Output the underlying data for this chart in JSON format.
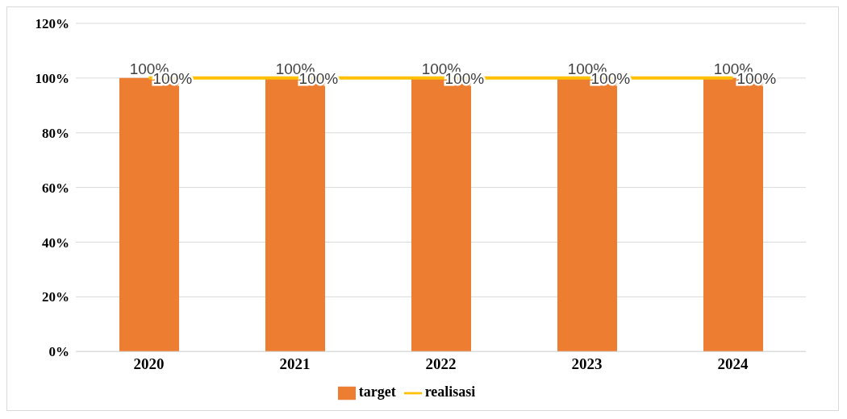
{
  "chart_data": {
    "type": "bar",
    "categories": [
      "2020",
      "2021",
      "2022",
      "2023",
      "2024"
    ],
    "series": [
      {
        "name": "target",
        "color": "#ed7d31",
        "values": [
          100,
          100,
          100,
          100,
          100
        ],
        "value_labels": [
          "100%",
          "100%",
          "100%",
          "100%",
          "100%"
        ]
      },
      {
        "name": "realisasi",
        "type": "line",
        "color": "#ffc000",
        "values": [
          100,
          100,
          100,
          100,
          100
        ],
        "value_labels": [
          "100%",
          "100%",
          "100%",
          "100%",
          "100%"
        ]
      }
    ],
    "ylim": [
      0,
      120
    ],
    "yticks": [
      {
        "value": 0,
        "label": "0%"
      },
      {
        "value": 20,
        "label": "20%"
      },
      {
        "value": 40,
        "label": "40%"
      },
      {
        "value": 60,
        "label": "60%"
      },
      {
        "value": 80,
        "label": "80%"
      },
      {
        "value": 100,
        "label": "100%"
      },
      {
        "value": 120,
        "label": "120%"
      }
    ],
    "grid": "y",
    "legend": "bottom",
    "marker": "none",
    "line_style": "solid"
  }
}
